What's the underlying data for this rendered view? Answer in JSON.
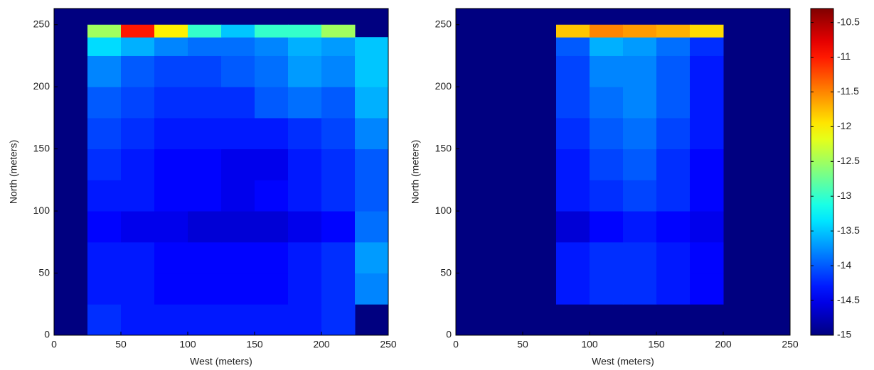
{
  "chart_data": [
    {
      "type": "heatmap",
      "colormap": "jet",
      "clim": [
        -15,
        -10.3
      ],
      "xlabel": "West (meters)",
      "ylabel": "North (meters)",
      "xlim": [
        0,
        250
      ],
      "ylim": [
        0,
        263
      ],
      "xticks": [
        0,
        50,
        100,
        150,
        200,
        250
      ],
      "yticks": [
        0,
        50,
        100,
        150,
        200,
        250
      ],
      "xbins": [
        0,
        25,
        50,
        75,
        100,
        125,
        150,
        175,
        200,
        225,
        250
      ],
      "ybins": [
        0,
        25,
        50,
        75,
        100,
        125,
        150,
        175,
        200,
        225,
        240,
        250
      ],
      "z": [
        [
          null,
          -14.2,
          -14.3,
          -14.3,
          -14.3,
          -14.3,
          -14.3,
          -14.3,
          -14.2,
          null
        ],
        [
          null,
          -14.3,
          -14.3,
          -14.4,
          -14.4,
          -14.4,
          -14.4,
          -14.3,
          -14.2,
          -13.8
        ],
        [
          null,
          -14.3,
          -14.3,
          -14.4,
          -14.4,
          -14.4,
          -14.4,
          -14.3,
          -14.2,
          -13.7
        ],
        [
          null,
          -14.4,
          -14.5,
          -14.5,
          -14.6,
          -14.6,
          -14.6,
          -14.5,
          -14.4,
          -13.9
        ],
        [
          null,
          -14.3,
          -14.3,
          -14.4,
          -14.4,
          -14.5,
          -14.4,
          -14.3,
          -14.2,
          -14.0
        ],
        [
          null,
          -14.2,
          -14.3,
          -14.4,
          -14.4,
          -14.5,
          -14.5,
          -14.3,
          -14.2,
          -14.0
        ],
        [
          null,
          -14.1,
          -14.2,
          -14.3,
          -14.3,
          -14.3,
          -14.3,
          -14.2,
          -14.1,
          -13.8
        ],
        [
          null,
          -14.0,
          -14.1,
          -14.2,
          -14.2,
          -14.2,
          -14.0,
          -13.9,
          -14.0,
          -13.6
        ],
        [
          null,
          -13.8,
          -14.0,
          -14.1,
          -14.1,
          -14.0,
          -13.9,
          -13.7,
          -13.8,
          -13.5
        ],
        [
          null,
          -13.4,
          -13.6,
          -13.8,
          -13.9,
          -13.9,
          -13.8,
          -13.6,
          -13.7,
          -13.5
        ],
        [
          null,
          -12.5,
          -11.0,
          -12.0,
          -13.0,
          -13.5,
          -13.0,
          -13.0,
          -12.5,
          null
        ]
      ]
    },
    {
      "type": "heatmap",
      "colormap": "jet",
      "clim": [
        -15,
        -10.3
      ],
      "xlabel": "West (meters)",
      "ylabel": "North (meters)",
      "xlim": [
        0,
        250
      ],
      "ylim": [
        0,
        263
      ],
      "xticks": [
        0,
        50,
        100,
        150,
        200,
        250
      ],
      "yticks": [
        0,
        50,
        100,
        150,
        200,
        250
      ],
      "xbins": [
        0,
        25,
        50,
        75,
        100,
        125,
        150,
        175,
        200,
        225,
        250
      ],
      "ybins": [
        0,
        25,
        50,
        75,
        100,
        125,
        150,
        175,
        200,
        225,
        240,
        250
      ],
      "z": [
        [
          null,
          null,
          null,
          null,
          null,
          null,
          null,
          null,
          null,
          null
        ],
        [
          null,
          null,
          null,
          -14.3,
          -14.2,
          -14.2,
          -14.3,
          -14.4,
          null,
          null
        ],
        [
          null,
          null,
          null,
          -14.3,
          -14.2,
          -14.2,
          -14.3,
          -14.4,
          null,
          null
        ],
        [
          null,
          null,
          null,
          -14.6,
          -14.4,
          -14.3,
          -14.4,
          -14.5,
          null,
          null
        ],
        [
          null,
          null,
          null,
          -14.3,
          -14.2,
          -14.1,
          -14.2,
          -14.4,
          null,
          null
        ],
        [
          null,
          null,
          null,
          -14.3,
          -14.1,
          -14.0,
          -14.2,
          -14.4,
          null,
          null
        ],
        [
          null,
          null,
          null,
          -14.2,
          -14.0,
          -13.9,
          -14.1,
          -14.3,
          null,
          null
        ],
        [
          null,
          null,
          null,
          -14.1,
          -13.9,
          -13.8,
          -14.0,
          -14.3,
          null,
          null
        ],
        [
          null,
          null,
          null,
          -14.1,
          -13.8,
          -13.8,
          -14.0,
          -14.3,
          null,
          null
        ],
        [
          null,
          null,
          null,
          -14.0,
          -13.6,
          -13.7,
          -13.9,
          -14.2,
          null,
          null
        ],
        [
          null,
          null,
          null,
          -11.8,
          -11.5,
          -11.6,
          -11.7,
          -11.9,
          null,
          null
        ]
      ],
      "colorbar": {
        "ticks": [
          -15,
          -14.5,
          -14,
          -13.5,
          -13,
          -12.5,
          -12,
          -11.5,
          -11,
          -10.5
        ]
      }
    }
  ]
}
